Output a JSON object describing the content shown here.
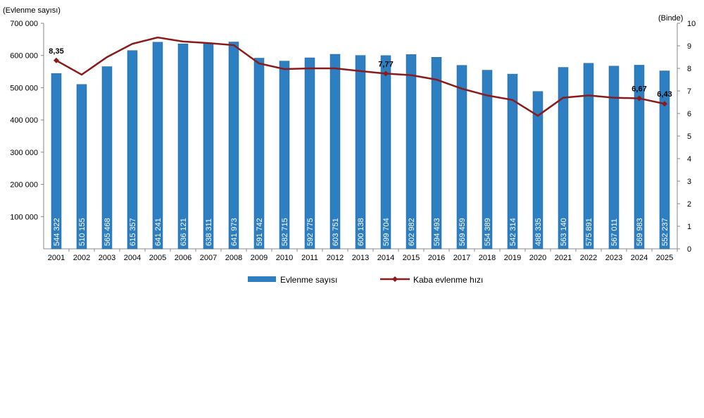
{
  "chart_data": {
    "type": "bar+line",
    "categories": [
      "2001",
      "2002",
      "2003",
      "2004",
      "2005",
      "2006",
      "2007",
      "2008",
      "2009",
      "2010",
      "2011",
      "2012",
      "2013",
      "2014",
      "2015",
      "2016",
      "2017",
      "2018",
      "2019",
      "2020",
      "2021",
      "2022",
      "2023",
      "2024",
      "2025"
    ],
    "left_axis_label": "(Evlenme sayısı)",
    "right_axis_label": "(Binde)",
    "left_ylim": [
      0,
      700000
    ],
    "left_ticks": [
      "100 000",
      "200 000",
      "300 000",
      "400 000",
      "500 000",
      "600 000",
      "700 000"
    ],
    "right_ylim": [
      0,
      10
    ],
    "right_ticks": [
      "0",
      "1",
      "2",
      "3",
      "4",
      "5",
      "6",
      "7",
      "8",
      "9",
      "10"
    ],
    "grid": false,
    "legend_position": "bottom",
    "series": [
      {
        "name": "Evlenme sayısı",
        "type": "bar",
        "color": "#2e7fc1",
        "axis": "left",
        "values": [
          544322,
          510155,
          565468,
          615357,
          641241,
          636121,
          638311,
          641973,
          591742,
          582715,
          592775,
          603751,
          600138,
          599704,
          602982,
          594493,
          569459,
          554389,
          542314,
          488335,
          563140,
          575891,
          567011,
          569983,
          552237
        ],
        "labels": [
          "544 322",
          "510 155",
          "565 468",
          "615 357",
          "641 241",
          "636 121",
          "638 311",
          "641 973",
          "591 742",
          "582 715",
          "592 775",
          "603 751",
          "600 138",
          "599 704",
          "602 982",
          "594 493",
          "569 459",
          "554 389",
          "542 314",
          "488 335",
          "563 140",
          "575 891",
          "567 011",
          "569 983",
          "552 237"
        ]
      },
      {
        "name": "Kaba evlenme hızı",
        "type": "line",
        "color": "#8b1a1a",
        "axis": "right",
        "values": [
          8.35,
          7.72,
          8.5,
          9.09,
          9.37,
          9.19,
          9.12,
          9.03,
          8.22,
          7.97,
          8.0,
          8.0,
          7.88,
          7.77,
          7.7,
          7.5,
          7.1,
          6.8,
          6.6,
          5.9,
          6.7,
          6.8,
          6.7,
          6.67,
          6.43
        ],
        "point_labels": {
          "0": "8,35",
          "13": "7,77",
          "23": "6,67",
          "24": "6,43"
        }
      }
    ]
  }
}
